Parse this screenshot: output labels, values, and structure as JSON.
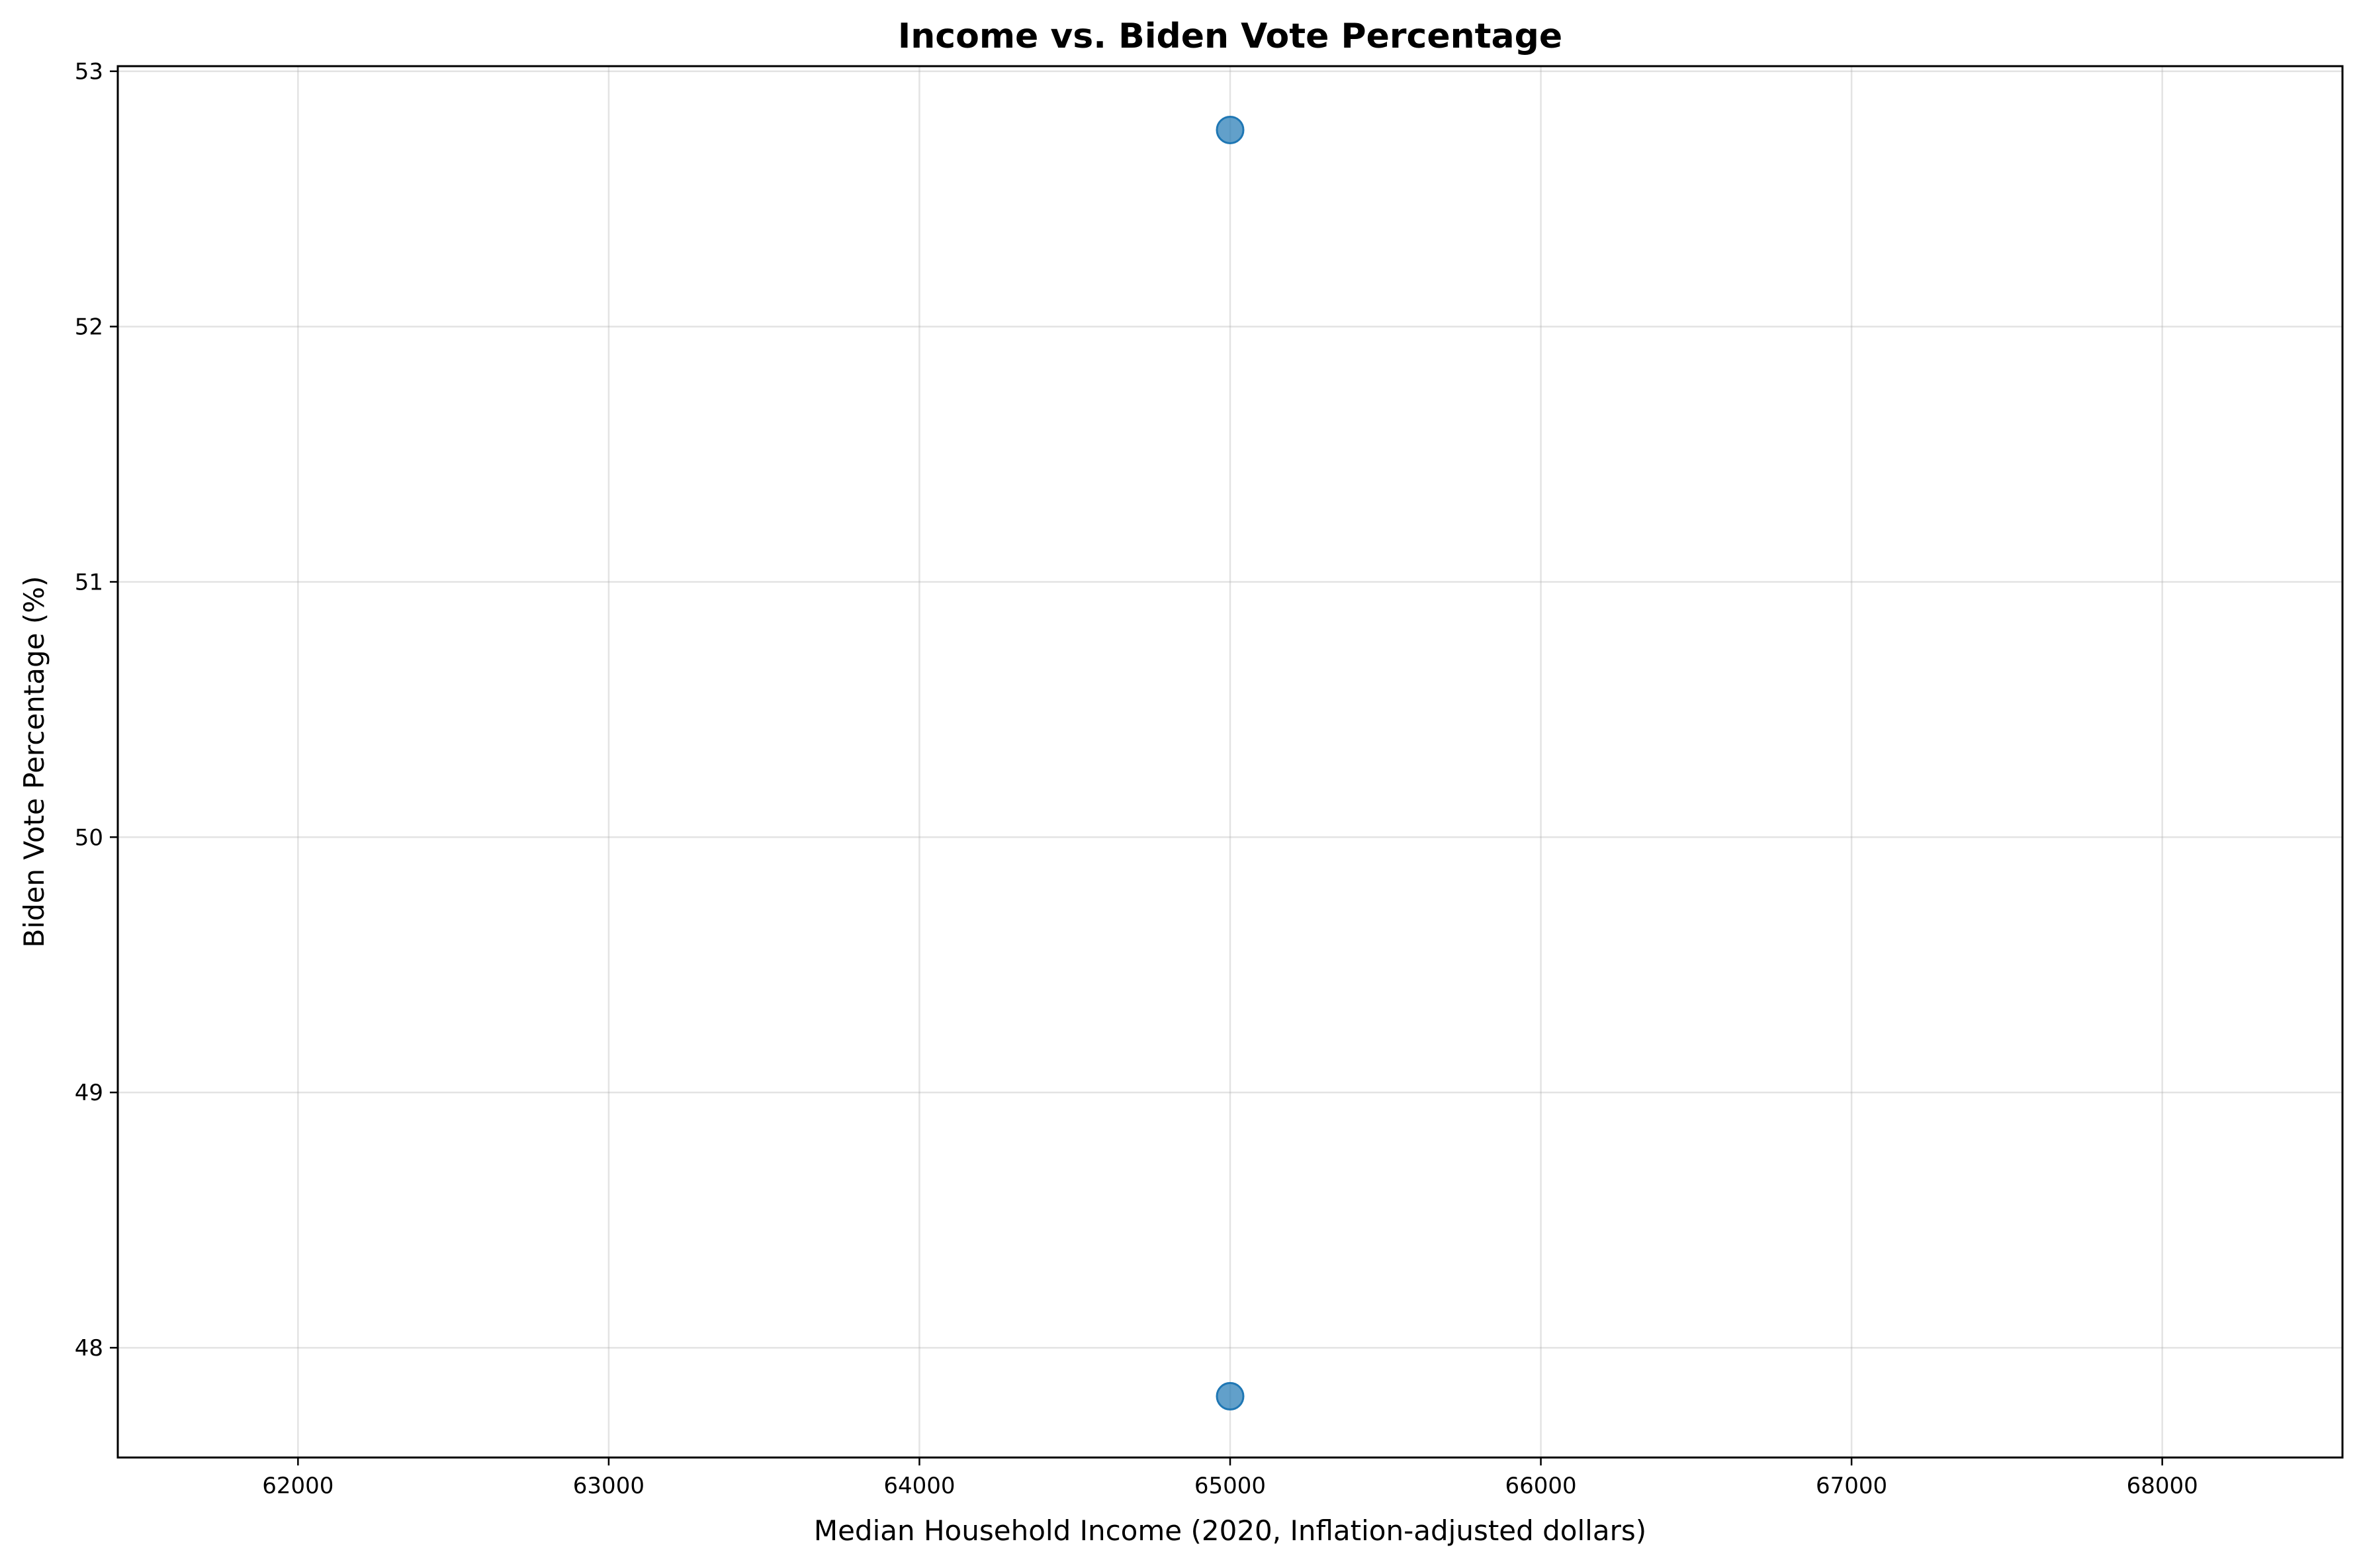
{
  "chart_data": {
    "type": "scatter",
    "title": "Income vs. Biden Vote Percentage",
    "xlabel": "Median Household Income (2020, Inflation-adjusted dollars)",
    "ylabel": "Biden Vote Percentage (%)",
    "xlim": [
      61420,
      68580
    ],
    "ylim": [
      47.57,
      53.02
    ],
    "xticks": [
      62000,
      63000,
      64000,
      65000,
      66000,
      67000,
      68000
    ],
    "xtick_labels": [
      "62000",
      "63000",
      "64000",
      "65000",
      "66000",
      "67000",
      "68000"
    ],
    "yticks": [
      48,
      49,
      50,
      51,
      52,
      53
    ],
    "ytick_labels": [
      "48",
      "49",
      "50",
      "51",
      "52",
      "53"
    ],
    "grid": true,
    "legend": "none",
    "marker_color": "#1f77b4",
    "points": [
      {
        "x": 65000,
        "y": 52.77
      },
      {
        "x": 65000,
        "y": 47.81
      }
    ]
  }
}
